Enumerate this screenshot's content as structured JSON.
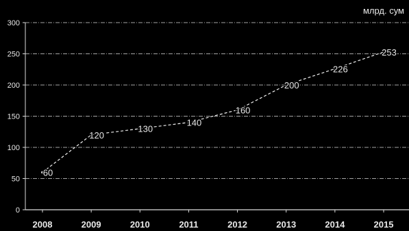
{
  "chart_data": {
    "type": "line",
    "title": "",
    "unit_label": "млрд. сум",
    "xlabel": "",
    "ylabel": "",
    "categories": [
      "2008",
      "2009",
      "2010",
      "2011",
      "2012",
      "2013",
      "2014",
      "2015"
    ],
    "series": [
      {
        "values": [
          60,
          120,
          130,
          140,
          160,
          200,
          226,
          253
        ],
        "labels": [
          "60",
          "120",
          "130",
          "140",
          "160",
          "200",
          "226",
          "253"
        ]
      }
    ],
    "ylim": [
      0,
      300
    ],
    "yticks": [
      0,
      50,
      100,
      150,
      200,
      250,
      300
    ],
    "ytick_labels": [
      "0",
      "50",
      "100",
      "150",
      "200",
      "250",
      "300"
    ],
    "grid": true,
    "line_color": "#f2f2f2",
    "grid_color": "#dcdcdc",
    "background": "#000000"
  }
}
